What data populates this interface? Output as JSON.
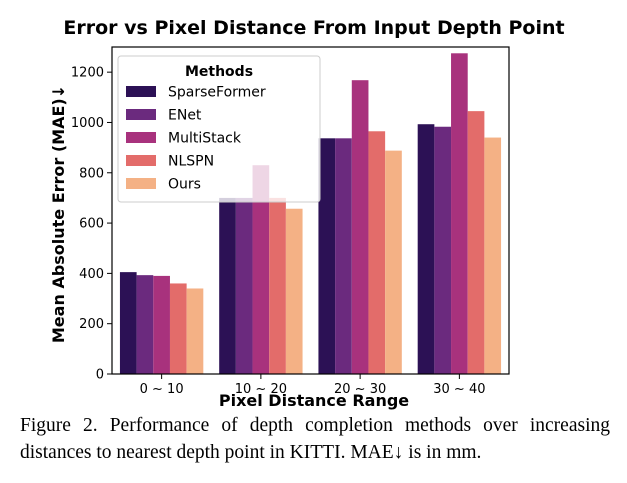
{
  "chart_data": {
    "type": "bar",
    "title": "Error vs Pixel Distance From Input Depth Point",
    "xlabel": "Pixel Distance Range",
    "ylabel": "Mean Absolute Error (MAE)↓",
    "categories": [
      "0 ~ 10",
      "10 ~ 20",
      "20 ~ 30",
      "30 ~ 40"
    ],
    "ylim": [
      0,
      1300
    ],
    "yticks": [
      0,
      200,
      400,
      600,
      800,
      1000,
      1200
    ],
    "legend_title": "Methods",
    "legend_position": "top-left",
    "series": [
      {
        "name": "SparseFormer",
        "color": "#2c1155",
        "values": [
          405,
          700,
          937,
          993
        ]
      },
      {
        "name": "ENet",
        "color": "#6b2a7e",
        "values": [
          393,
          700,
          937,
          983
        ]
      },
      {
        "name": "MultiStack",
        "color": "#a8327d",
        "values": [
          390,
          830,
          1168,
          1275
        ]
      },
      {
        "name": "NLSPN",
        "color": "#e36c6a",
        "values": [
          360,
          700,
          965,
          1045
        ]
      },
      {
        "name": "Ours",
        "color": "#f4b185",
        "values": [
          340,
          657,
          888,
          940
        ]
      }
    ]
  },
  "caption": "Figure 2. Performance of depth completion methods over increasing distances to nearest depth point in KITTI. MAE↓ is in mm."
}
